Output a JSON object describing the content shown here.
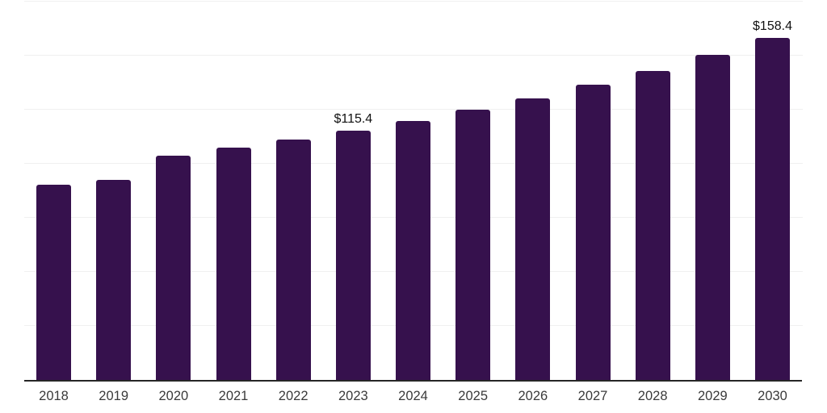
{
  "chart_data": {
    "type": "bar",
    "title": "",
    "xlabel": "",
    "ylabel": "",
    "categories": [
      "2018",
      "2019",
      "2020",
      "2021",
      "2022",
      "2023",
      "2024",
      "2025",
      "2026",
      "2027",
      "2028",
      "2029",
      "2030"
    ],
    "values": [
      90.4,
      92.6,
      103.8,
      107.5,
      111.2,
      115.4,
      119.9,
      125.0,
      130.2,
      136.5,
      142.9,
      150.3,
      158.4
    ],
    "annotations": [
      {
        "category": "2023",
        "label": "$115.4"
      },
      {
        "category": "2030",
        "label": "$158.4"
      }
    ],
    "ylim": [
      0,
      175
    ],
    "gridline_step": 25,
    "grid": "horizontal-only",
    "y_tick_labels_visible": false,
    "legend_position": "none",
    "colors": {
      "bar": "#36114d",
      "gridline": "#f0f0f0",
      "axis_line": "#262626",
      "x_tick_label": "#3a3a3a",
      "annotation": "#111111",
      "background": "#ffffff"
    }
  }
}
